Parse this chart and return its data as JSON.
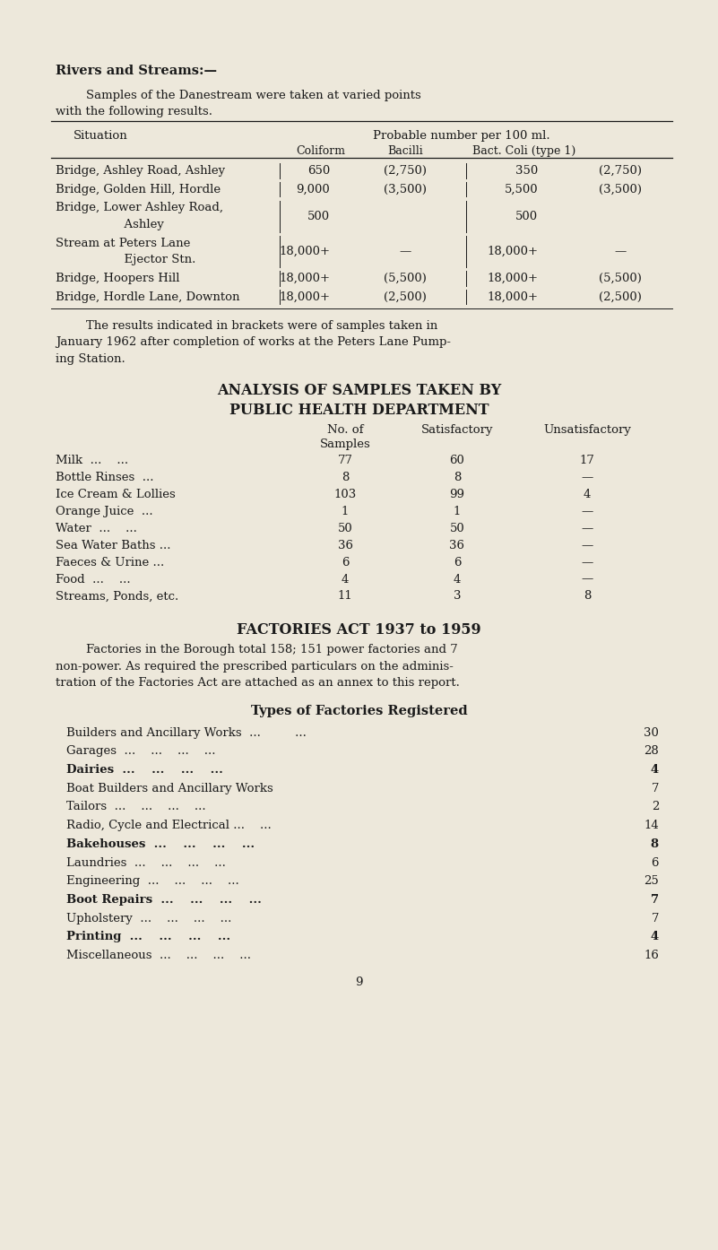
{
  "bg_color": "#ede8db",
  "text_color": "#1a1a1a",
  "page_width": 8.01,
  "page_height": 13.94,
  "dpi": 100,
  "section1_heading": "Rivers and Streams:—",
  "section1_para_line1": "        Samples of the Danestream were taken at varied points",
  "section1_para_line2": "with the following results.",
  "t1_h1": "Situation",
  "t1_h2": "Probable number per 100 ml.",
  "t1_h3a": "Coliform",
  "t1_h3b": "Bacilli",
  "t1_h3c": "Bact. Coli (type 1)",
  "t1_rows": [
    {
      "sit": [
        "Bridge, Ashley Road, Ashley"
      ],
      "c1": "650",
      "c2": "(2,750)",
      "c3": "350",
      "c4": "(2,750)"
    },
    {
      "sit": [
        "Bridge, Golden Hill, Hordle"
      ],
      "c1": "9,000",
      "c2": "(3,500)",
      "c3": "5,500",
      "c4": "(3,500)"
    },
    {
      "sit": [
        "Bridge, Lower Ashley Road,",
        "                  Ashley"
      ],
      "c1": "500",
      "c2": "",
      "c3": "500",
      "c4": ""
    },
    {
      "sit": [
        "Stream at Peters Lane",
        "                  Ejector Stn."
      ],
      "c1": "18,000+",
      "c2": "—",
      "c3": "18,000+",
      "c4": "—"
    },
    {
      "sit": [
        "Bridge, Hoopers Hill"
      ],
      "c1": "18,000+",
      "c2": "(5,500)",
      "c3": "18,000+",
      "c4": "(5,500)"
    },
    {
      "sit": [
        "Bridge, Hordle Lane, Downton"
      ],
      "c1": "18,000+",
      "c2": "(2,500)",
      "c3": "18,000+",
      "c4": "(2,500)"
    }
  ],
  "note_lines": [
    "        The results indicated in brackets were of samples taken in",
    "January 1962 after completion of works at the Peters Lane Pump-",
    "ing Station."
  ],
  "s2h1": "ANALYSIS OF SAMPLES TAKEN BY",
  "s2h2": "PUBLIC HEALTH DEPARTMENT",
  "t2_rows": [
    {
      "label": "Milk",
      "dots": "...    ...",
      "n": "77",
      "s": "60",
      "u": "17"
    },
    {
      "label": "Bottle Rinses",
      "dots": "...",
      "n": "8",
      "s": "8",
      "u": "—"
    },
    {
      "label": "Ice Cream & Lollies",
      "dots": "",
      "n": "103",
      "s": "99",
      "u": "4"
    },
    {
      "label": "Orange Juice",
      "dots": "...",
      "n": "1",
      "s": "1",
      "u": "—"
    },
    {
      "label": "Water",
      "dots": "...    ...",
      "n": "50",
      "s": "50",
      "u": "—"
    },
    {
      "label": "Sea Water Baths ...",
      "dots": "",
      "n": "36",
      "s": "36",
      "u": "—"
    },
    {
      "label": "Faeces & Urine ...",
      "dots": "",
      "n": "6",
      "s": "6",
      "u": "—"
    },
    {
      "label": "Food",
      "dots": "...    ...",
      "n": "4",
      "s": "4",
      "u": "—"
    },
    {
      "label": "Streams, Ponds, etc.",
      "dots": "",
      "n": "11",
      "s": "3",
      "u": "8"
    }
  ],
  "s3h": "FACTORIES ACT 1937 to 1959",
  "s3_para": [
    "        Factories in the Borough total 158; 151 power factories and 7",
    "non-power. As required the prescribed particulars on the adminis-",
    "tration of the Factories Act are attached as an annex to this report."
  ],
  "s4h": "Types of Factories Registered",
  "factories": [
    {
      "name": "Builders and Ancillary Works",
      "dots": "...         ...",
      "num": "30",
      "bold": false
    },
    {
      "name": "Garages",
      "dots": "...    ...    ...    ...",
      "num": "28",
      "bold": false
    },
    {
      "name": "Dairies",
      "dots": "...    ...    ...    ...",
      "num": "4",
      "bold": true
    },
    {
      "name": "Boat Builders and Ancillary Works",
      "dots": "",
      "num": "7",
      "bold": false
    },
    {
      "name": "Tailors",
      "dots": "...    ...    ...    ...",
      "num": "2",
      "bold": false
    },
    {
      "name": "Radio, Cycle and Electrical ...",
      "dots": "  ...",
      "num": "14",
      "bold": false
    },
    {
      "name": "Bakehouses",
      "dots": "...    ...    ...    ...",
      "num": "8",
      "bold": true
    },
    {
      "name": "Laundries",
      "dots": "...    ...    ...    ...",
      "num": "6",
      "bold": false
    },
    {
      "name": "Engineering",
      "dots": "...    ...    ...    ...",
      "num": "25",
      "bold": false
    },
    {
      "name": "Boot Repairs",
      "dots": "...    ...    ...    ...",
      "num": "7",
      "bold": true
    },
    {
      "name": "Upholstery",
      "dots": "...    ...    ...    ...",
      "num": "7",
      "bold": false
    },
    {
      "name": "Printing",
      "dots": "...    ...    ...    ...",
      "num": "4",
      "bold": true
    },
    {
      "name": "Miscellaneous",
      "dots": "...    ...    ...    ...",
      "num": "16",
      "bold": false
    }
  ],
  "page_num": "9"
}
